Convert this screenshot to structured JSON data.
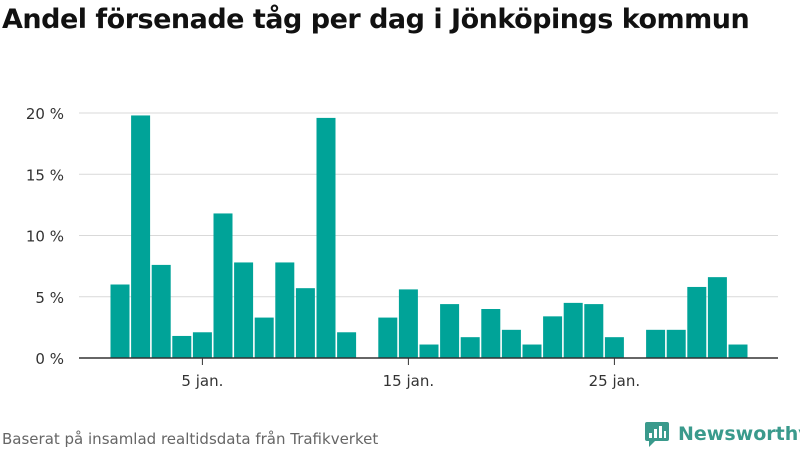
{
  "title": "Andel försenade tåg per dag i Jönköpings kommun",
  "source": "Baserat på insamlad realtidsdata från Trafikverket",
  "brand": "Newsworthy",
  "colors": {
    "bar": "#00a398",
    "grid": "#d9d9d9",
    "axis": "#333333",
    "brand": "#3a9a8c"
  },
  "chart_data": {
    "type": "bar",
    "x": [
      1,
      2,
      3,
      4,
      5,
      6,
      7,
      8,
      9,
      10,
      11,
      12,
      13,
      14,
      15,
      16,
      17,
      18,
      19,
      20,
      21,
      22,
      23,
      24,
      25,
      26,
      27,
      28,
      29,
      30,
      31,
      32
    ],
    "values": [
      6.0,
      19.8,
      7.6,
      1.8,
      2.1,
      11.8,
      7.8,
      3.3,
      7.8,
      5.7,
      19.6,
      2.1,
      null,
      3.3,
      5.6,
      1.1,
      4.4,
      1.7,
      4.0,
      2.3,
      1.1,
      3.4,
      4.5,
      4.4,
      1.7,
      null,
      2.3,
      2.3,
      5.8,
      6.6,
      1.1,
      null
    ],
    "xticks": [
      {
        "x": 5,
        "label": "5 jan."
      },
      {
        "x": 15,
        "label": "15 jan."
      },
      {
        "x": 25,
        "label": "25 jan."
      }
    ],
    "yticks": [
      {
        "y": 0,
        "label": "0 %"
      },
      {
        "y": 5,
        "label": "5 %"
      },
      {
        "y": 10,
        "label": "10 %"
      },
      {
        "y": 15,
        "label": "15 %"
      },
      {
        "y": 20,
        "label": "20 %"
      }
    ],
    "ylim": [
      0,
      20
    ],
    "grid": true
  }
}
